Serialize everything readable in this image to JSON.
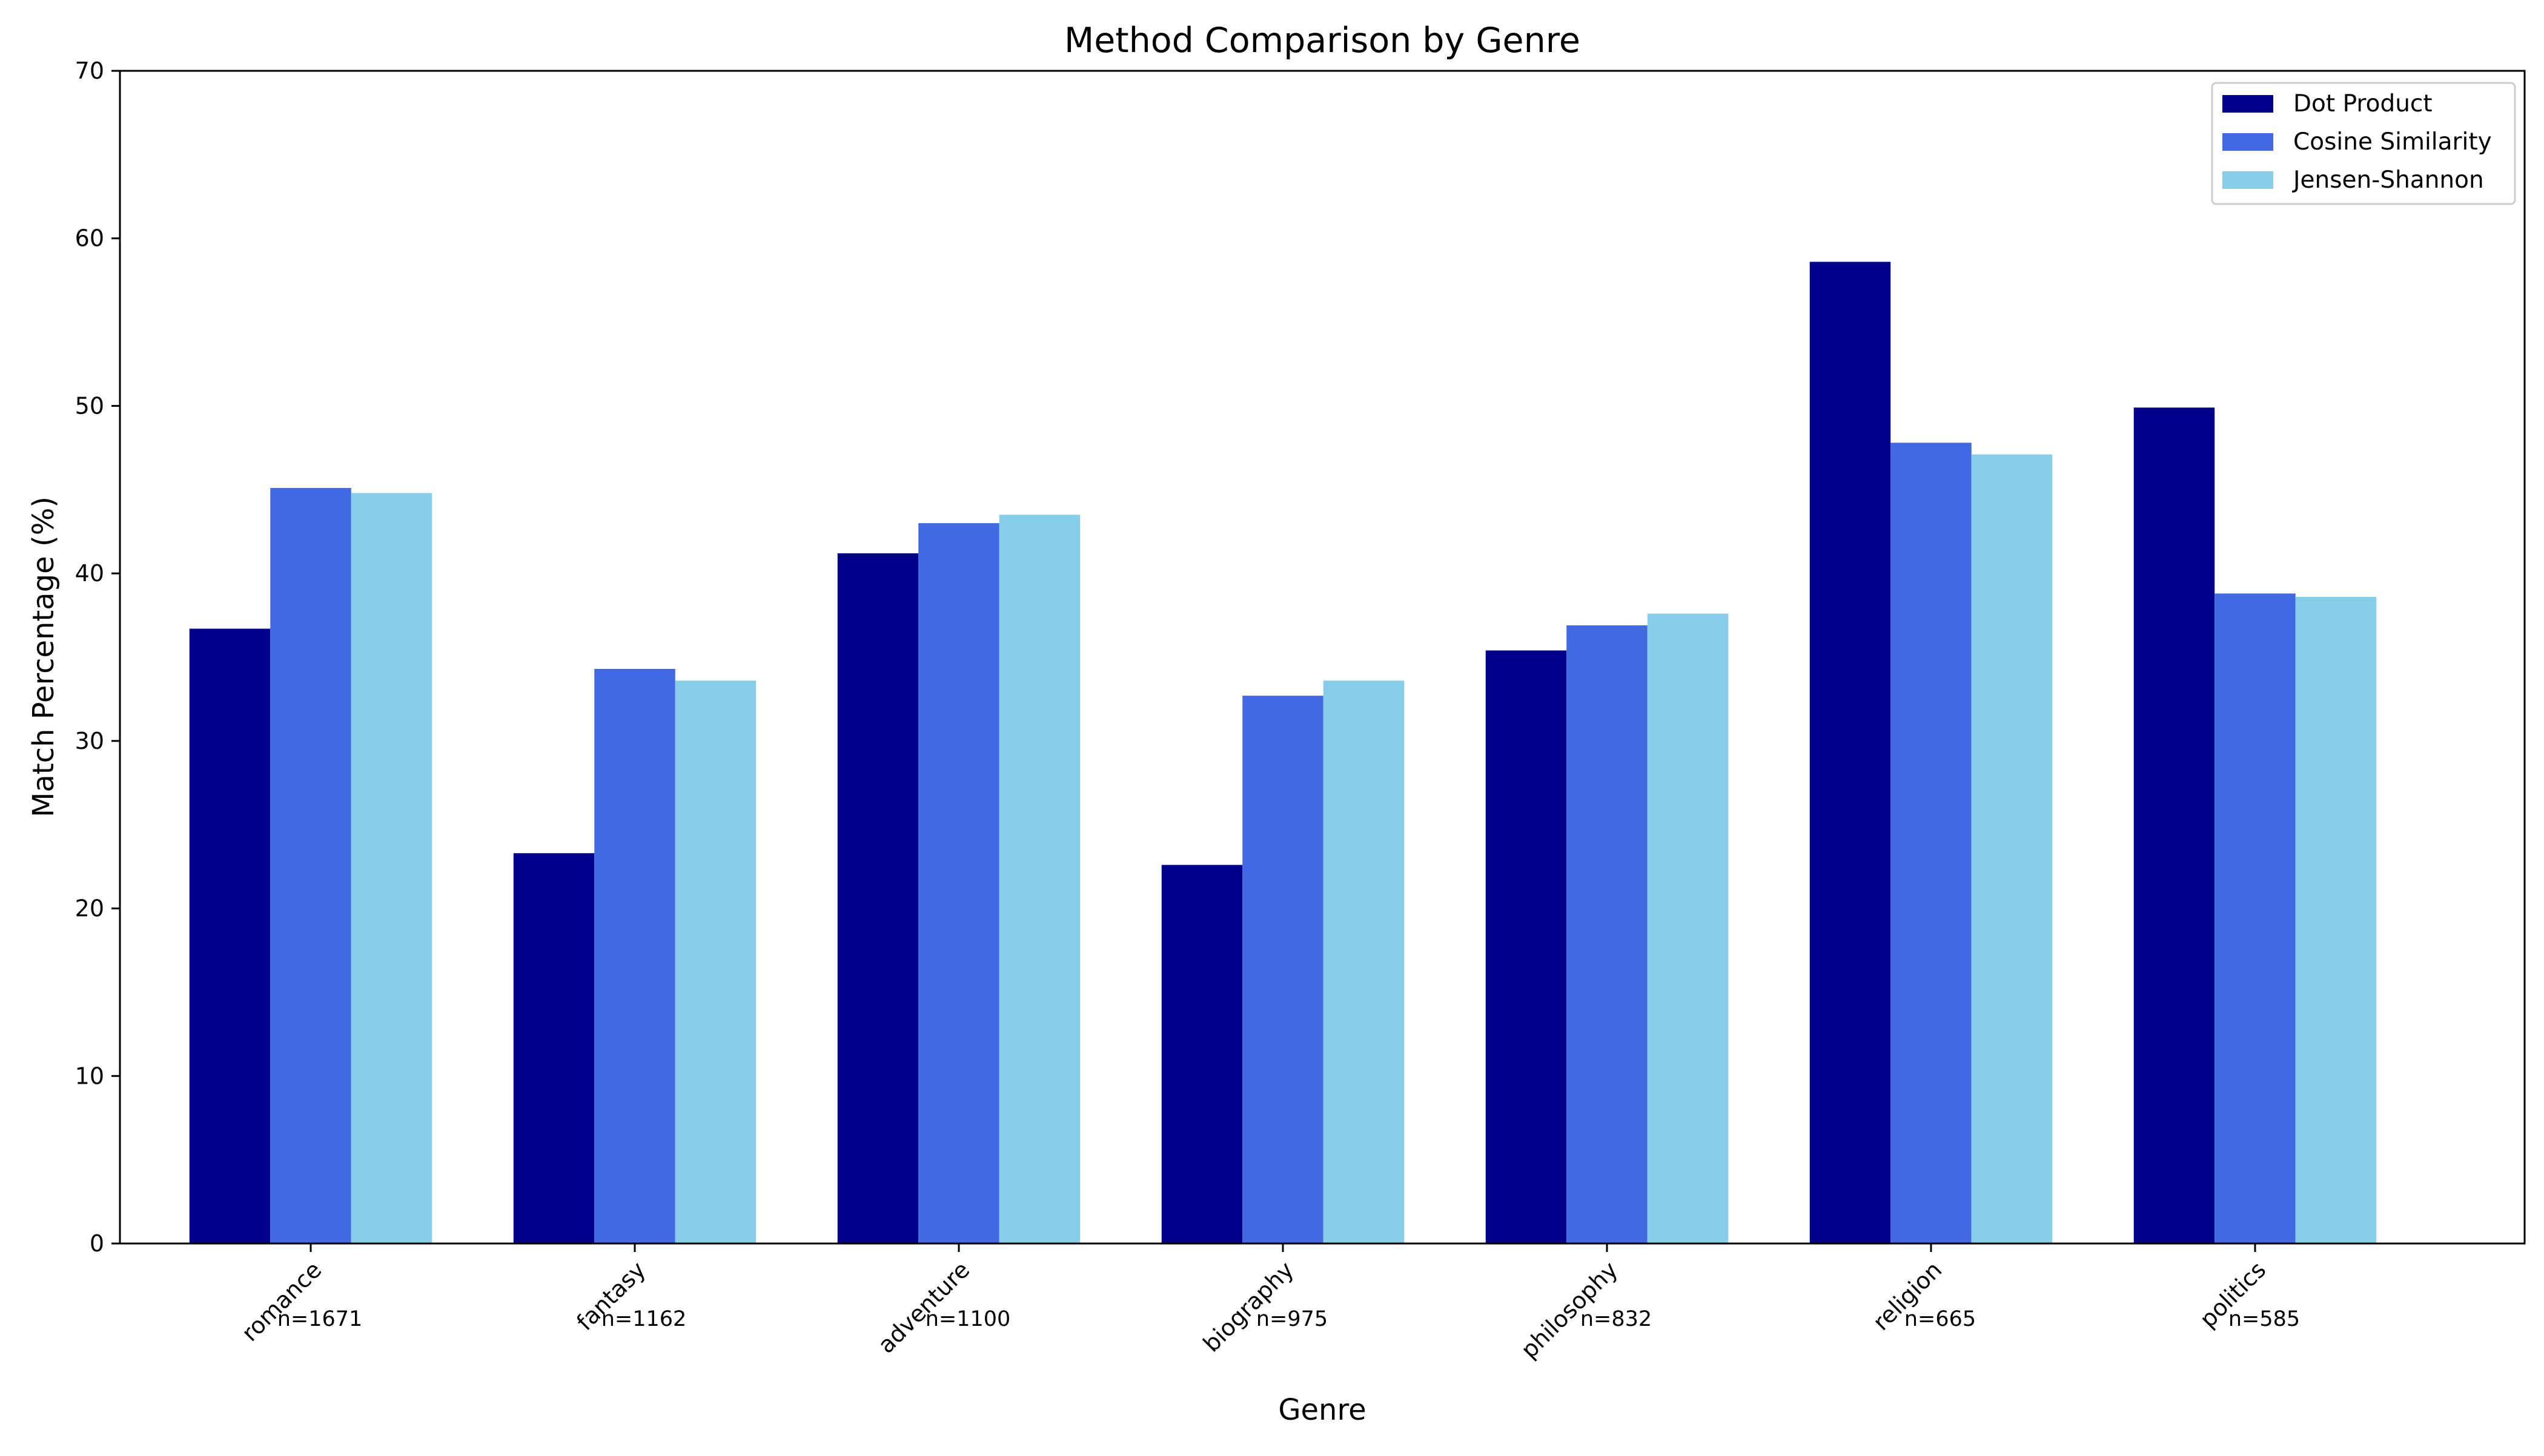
{
  "chart_data": {
    "type": "bar",
    "title": "Method Comparison by Genre",
    "xlabel": "Genre",
    "ylabel": "Match Percentage (%)",
    "ylim": [
      0,
      70
    ],
    "yticks": [
      0,
      10,
      20,
      30,
      40,
      50,
      60,
      70
    ],
    "categories": [
      "romance",
      "fantasy",
      "adventure",
      "biography",
      "philosophy",
      "religion",
      "politics"
    ],
    "sample_sizes": [
      "n=1671",
      "n=1162",
      "n=1100",
      "n=975",
      "n=832",
      "n=665",
      "n=585"
    ],
    "series": [
      {
        "name": "Dot Product",
        "color": "#00008b",
        "values": [
          36.7,
          23.3,
          41.2,
          22.6,
          35.4,
          58.6,
          49.9
        ]
      },
      {
        "name": "Cosine Similarity",
        "color": "#4169e1",
        "values": [
          45.1,
          34.3,
          43.0,
          32.7,
          36.9,
          47.8,
          38.8
        ]
      },
      {
        "name": "Jensen-Shannon",
        "color": "#87ceeb",
        "values": [
          44.8,
          33.6,
          43.5,
          33.6,
          37.6,
          47.1,
          38.6
        ]
      }
    ],
    "legend_position": "top-right",
    "grid": false
  }
}
